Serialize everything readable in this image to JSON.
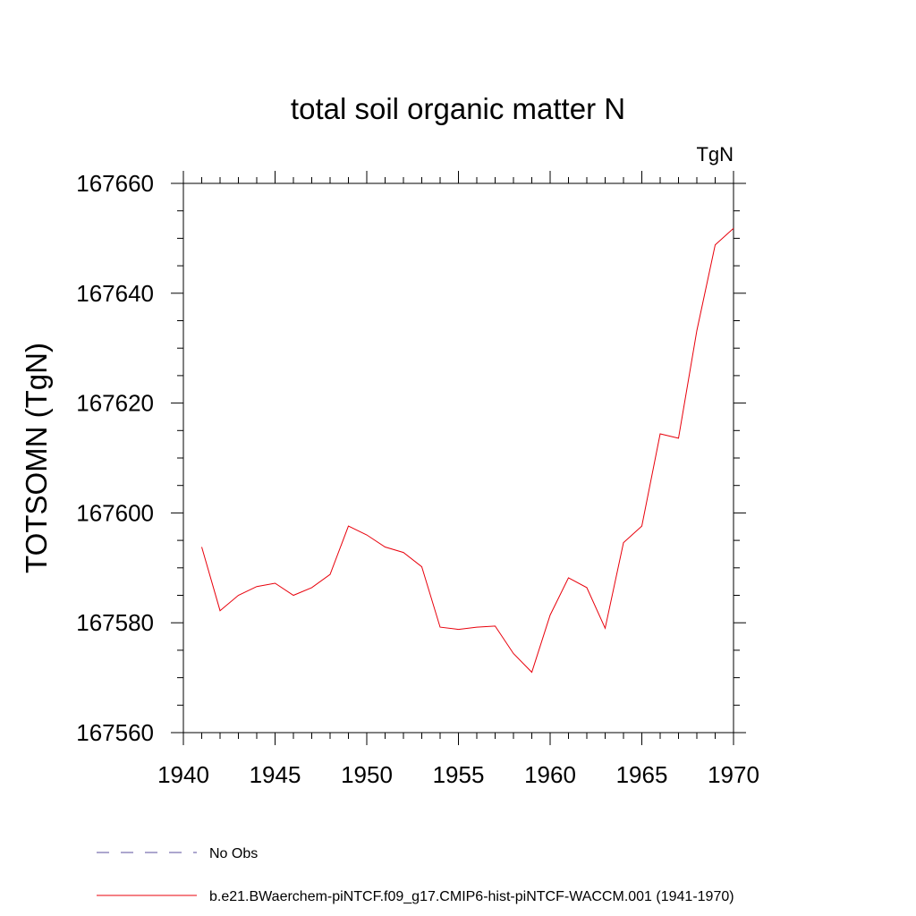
{
  "chart_data": {
    "type": "line",
    "title": "total soil organic matter N",
    "units_label": "TgN",
    "ylabel": "TOTSOMN  (TgN)",
    "xlabel": "",
    "xlim": [
      1940,
      1970
    ],
    "ylim": [
      167560,
      167660
    ],
    "x_ticks": [
      1940,
      1945,
      1950,
      1955,
      1960,
      1965,
      1970
    ],
    "y_ticks": [
      167560,
      167580,
      167600,
      167620,
      167640,
      167660
    ],
    "grid": false,
    "series": [
      {
        "name": "b.e21.BWaerchem-piNTCF.f09_g17.CMIP6-hist-piNTCF-WACCM.001 (1941-1970)",
        "color": "#e8000b",
        "x": [
          1941,
          1942,
          1943,
          1944,
          1945,
          1946,
          1947,
          1948,
          1949,
          1950,
          1951,
          1952,
          1953,
          1954,
          1955,
          1956,
          1957,
          1958,
          1959,
          1960,
          1961,
          1962,
          1963,
          1964,
          1965,
          1966,
          1967,
          1968,
          1969,
          1970
        ],
        "y": [
          167593.8,
          167582.2,
          167585.0,
          167586.6,
          167587.2,
          167585.0,
          167586.4,
          167588.8,
          167597.6,
          167596.0,
          167593.8,
          167592.8,
          167590.2,
          167579.2,
          167578.8,
          167579.2,
          167579.4,
          167574.4,
          167571.0,
          167581.4,
          167588.2,
          167586.4,
          167579.0,
          167594.6,
          167597.6,
          167614.4,
          167613.6,
          167633.2,
          167648.8,
          167651.8
        ]
      }
    ],
    "legend": [
      {
        "label": "No Obs",
        "style": "dashed",
        "color": "#5b4f9e"
      },
      {
        "label": "b.e21.BWaerchem-piNTCF.f09_g17.CMIP6-hist-piNTCF-WACCM.001 (1941-1970)",
        "style": "solid",
        "color": "#e8000b"
      }
    ],
    "legend_placement": "bottom"
  }
}
